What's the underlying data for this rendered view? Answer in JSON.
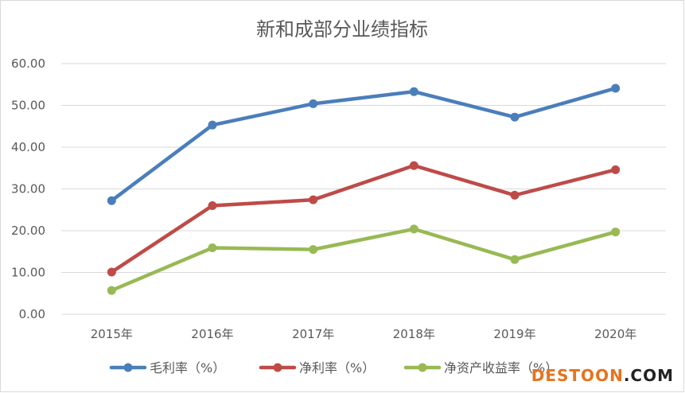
{
  "chart_data": {
    "type": "line",
    "title": "新和成部分业绩指标",
    "xlabel": "",
    "ylabel": "",
    "categories": [
      "2015年",
      "2016年",
      "2017年",
      "2018年",
      "2019年",
      "2020年"
    ],
    "ylim": [
      0,
      60
    ],
    "yticks": [
      "0.00",
      "10.00",
      "20.00",
      "30.00",
      "40.00",
      "50.00",
      "60.00"
    ],
    "grid": true,
    "legend_position": "bottom",
    "series": [
      {
        "name": "毛利率（%）",
        "color": "#4a7ebb",
        "values": [
          27.2,
          45.3,
          50.4,
          53.3,
          47.2,
          54.1
        ]
      },
      {
        "name": "净利率（%）",
        "color": "#be4b48",
        "values": [
          10.1,
          26.0,
          27.4,
          35.6,
          28.5,
          34.6
        ]
      },
      {
        "name": "净资产收益率（%）",
        "color": "#98b954",
        "values": [
          5.7,
          15.9,
          15.5,
          20.4,
          13.1,
          19.7
        ]
      }
    ]
  },
  "watermark": {
    "prefix": "DESTOON",
    "suffix": ".COM",
    "prefix_color": "#e8731d",
    "suffix_color": "#222222"
  }
}
